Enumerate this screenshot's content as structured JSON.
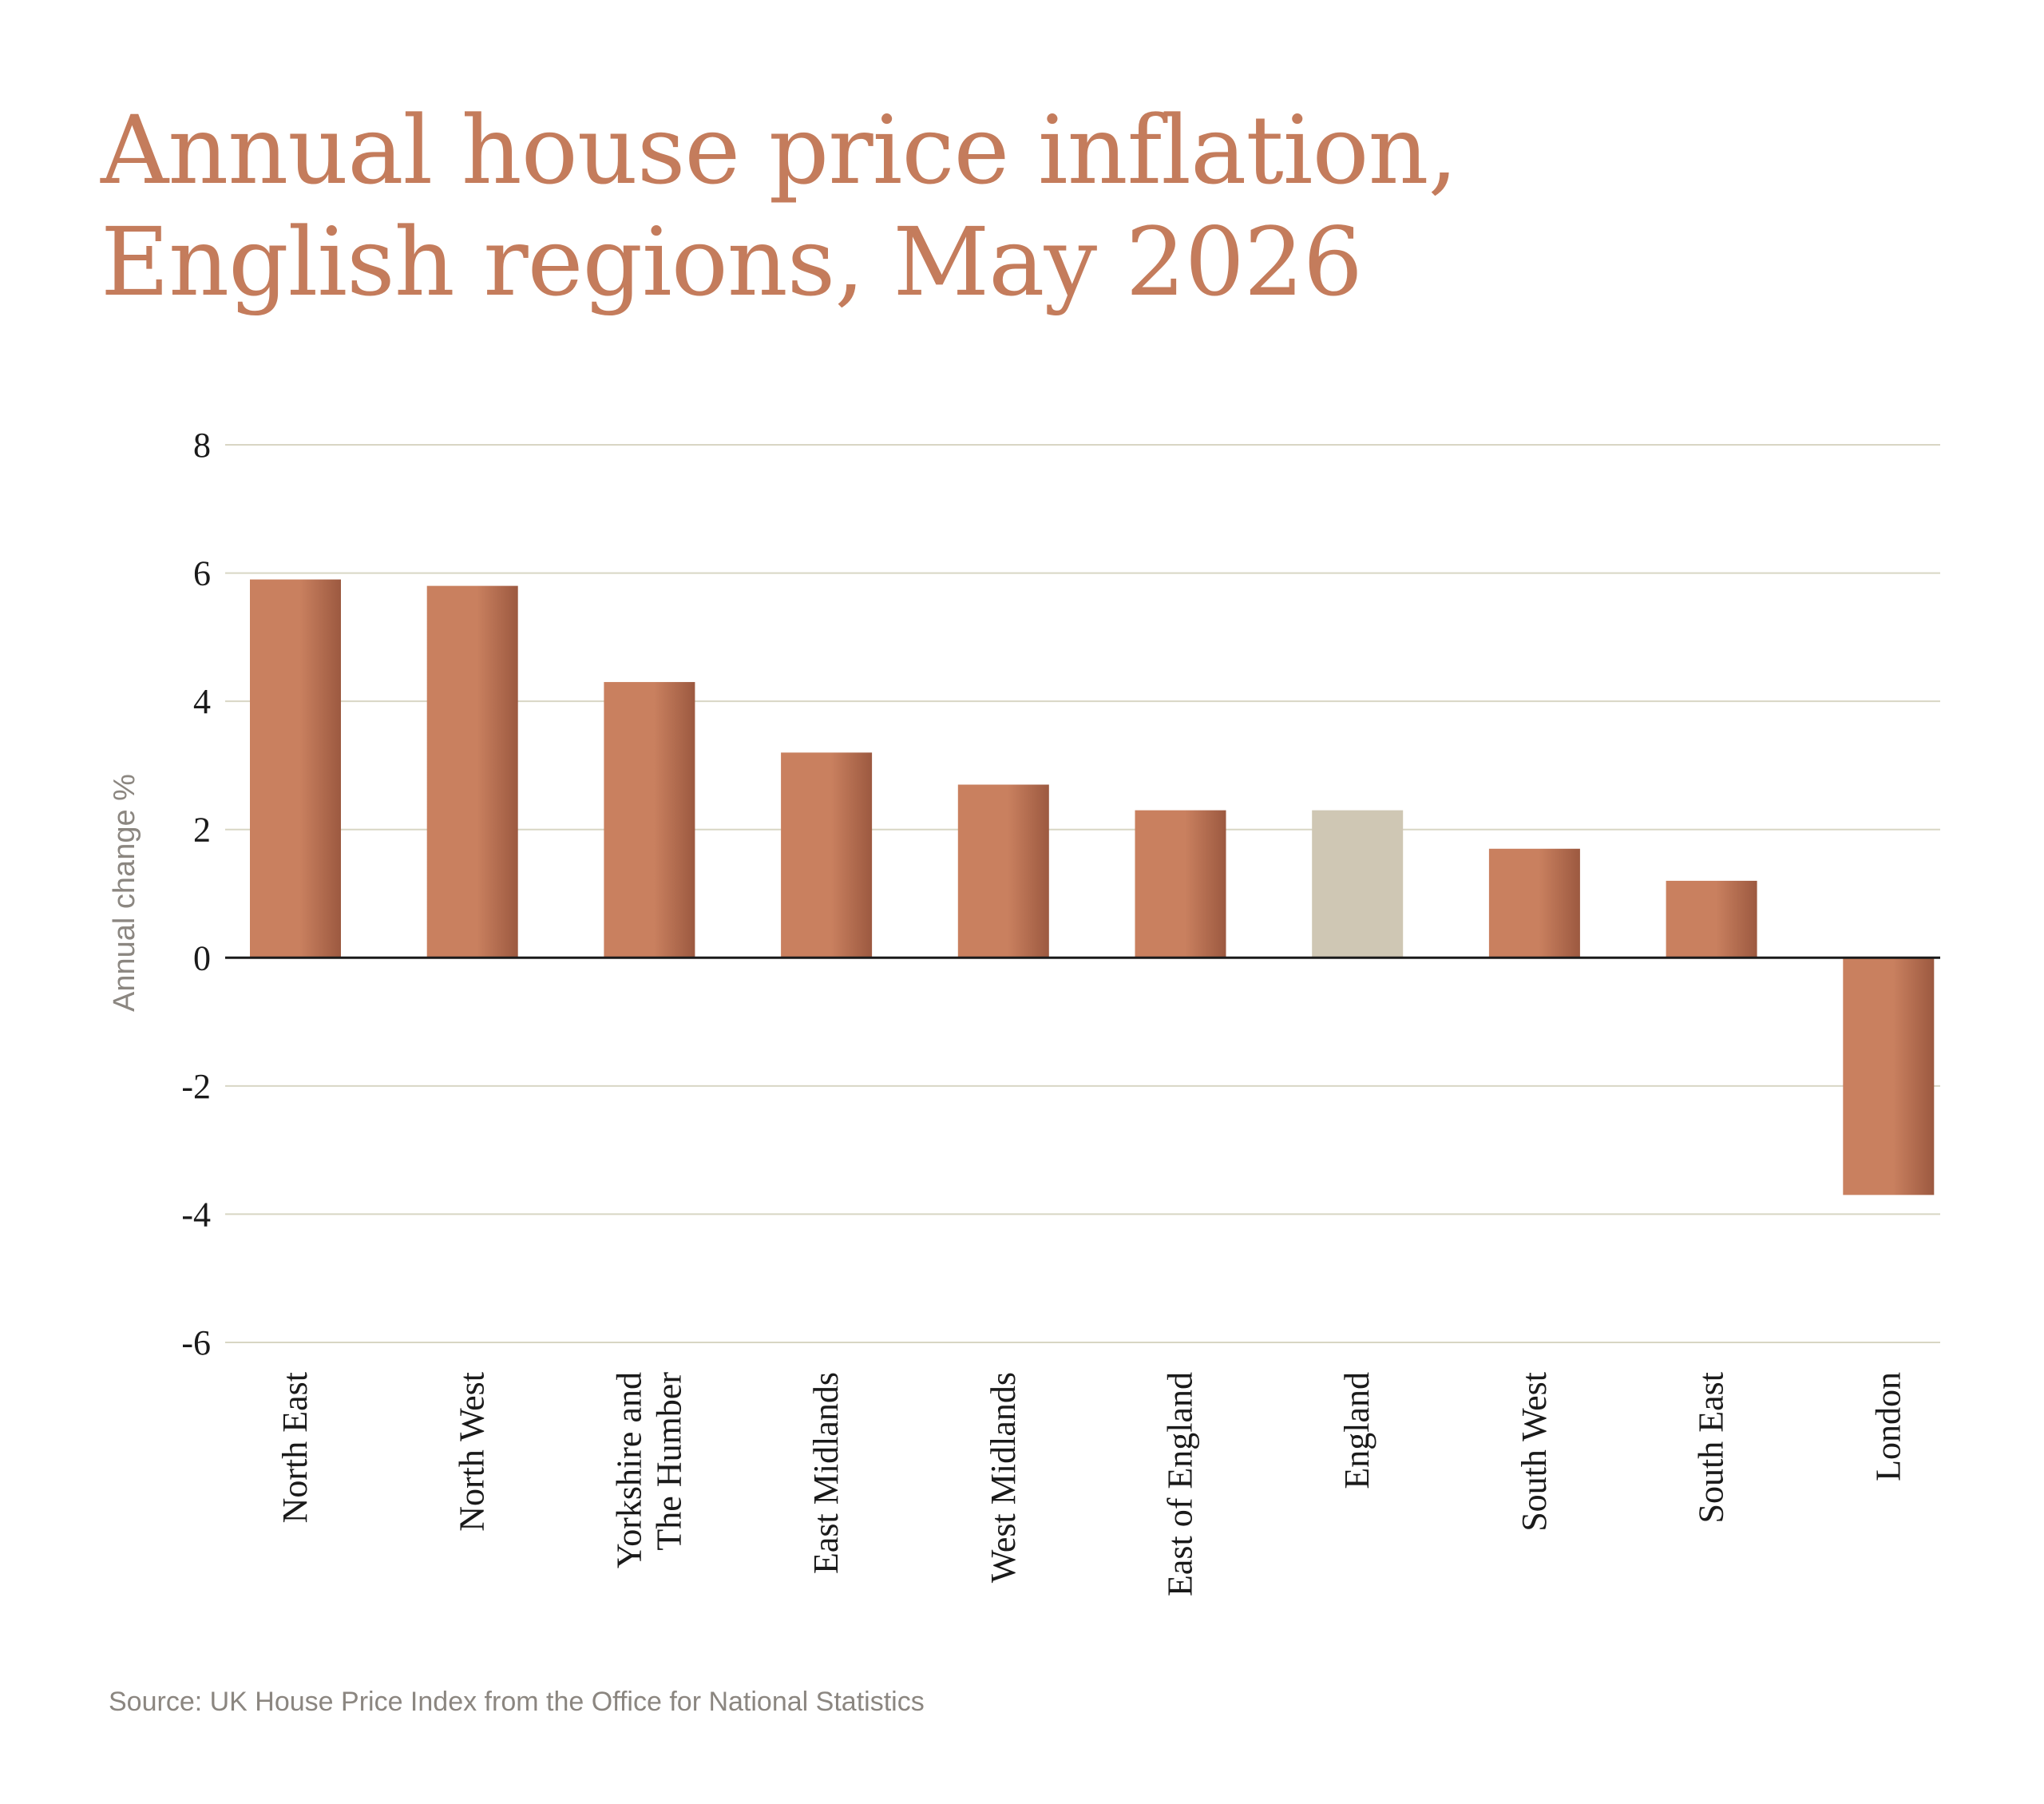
{
  "title_line1": "Annual house price inflation,",
  "title_line2": "English regions, May 2026",
  "source": "Source: UK House Price Index from the Office for National Statistics",
  "colors": {
    "title": "#c47c5c",
    "bar_light": "#c9805f",
    "bar_dark": "#9c5940",
    "bar_highlight": "#cfc7b4",
    "gridline": "#d8d6c4",
    "zero_line": "#1a1a1a",
    "source": "#8b8680"
  },
  "chart_data": {
    "type": "bar",
    "title": "Annual house price inflation, English regions, May 2026",
    "xlabel": "",
    "ylabel": "Annual change %",
    "ylim": [
      -6,
      8
    ],
    "yticks": [
      8,
      6,
      4,
      2,
      0,
      -2,
      -4,
      -6
    ],
    "ytick_labels": [
      "8",
      "6",
      "4",
      "2",
      "0",
      "-2",
      "-4",
      "-6"
    ],
    "grid": true,
    "legend": "none",
    "categories": [
      [
        "North East"
      ],
      [
        "North West"
      ],
      [
        "Yorkshire and",
        "The Humber"
      ],
      [
        "East Midlands"
      ],
      [
        "West Midlands"
      ],
      [
        "East of England"
      ],
      [
        "England"
      ],
      [
        "South West"
      ],
      [
        "South East"
      ],
      [
        "London"
      ]
    ],
    "values": [
      5.9,
      5.8,
      4.3,
      3.2,
      2.7,
      2.3,
      2.3,
      1.7,
      1.2,
      -3.7
    ],
    "highlight": [
      false,
      false,
      false,
      false,
      false,
      false,
      true,
      false,
      false,
      false
    ]
  }
}
